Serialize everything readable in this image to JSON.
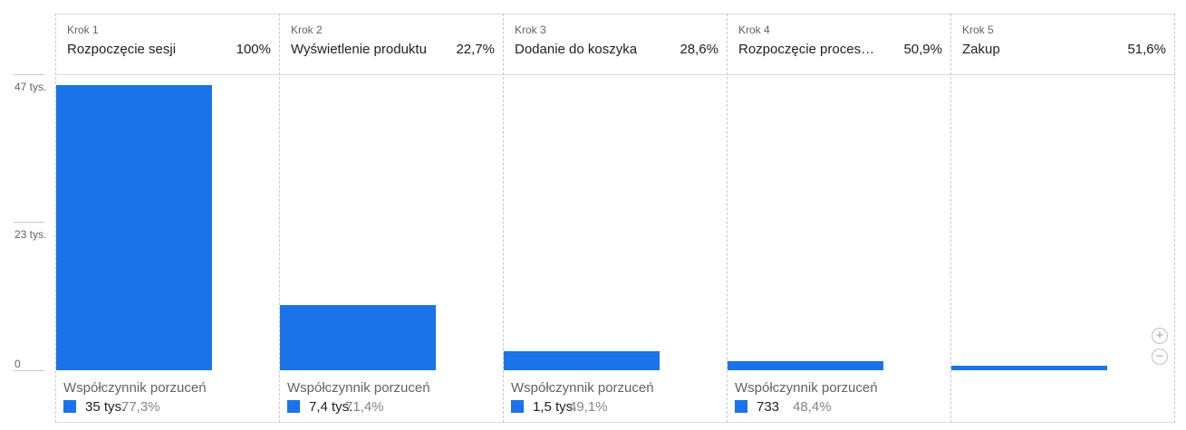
{
  "y_axis": {
    "ticks": [
      "47 tys.",
      "23 tys.",
      "0"
    ]
  },
  "steps": [
    {
      "title": "Krok 1",
      "name": "Rozpoczęcie sesji",
      "pct": "100%",
      "abandon_label": "Współczynnik porzuceń",
      "abandon_count": "35 tys.",
      "abandon_rate": "77,3%"
    },
    {
      "title": "Krok 2",
      "name": "Wyświetlenie produktu",
      "pct": "22,7%",
      "abandon_label": "Współczynnik porzuceń",
      "abandon_count": "7,4 tys.",
      "abandon_rate": "71,4%"
    },
    {
      "title": "Krok 3",
      "name": "Dodanie do koszyka",
      "pct": "28,6%",
      "abandon_label": "Współczynnik porzuceń",
      "abandon_count": "1,5 tys.",
      "abandon_rate": "49,1%"
    },
    {
      "title": "Krok 4",
      "name": "Rozpoczęcie procesu płatności",
      "pct": "50,9%",
      "abandon_label": "Współczynnik porzuceń",
      "abandon_count": "733",
      "abandon_rate": "48,4%"
    },
    {
      "title": "Krok 5",
      "name": "Zakup",
      "pct": "51,6%"
    }
  ],
  "zoom": {
    "in_icon": "zoom-in-icon",
    "out_icon": "zoom-out-icon"
  },
  "chart_data": {
    "type": "bar",
    "categories": [
      "Rozpoczęcie sesji",
      "Wyświetlenie produktu",
      "Dodanie do koszyka",
      "Rozpoczęcie procesu płatności",
      "Zakup"
    ],
    "values": [
      45300,
      10300,
      2950,
      1500,
      776
    ],
    "ylim": [
      0,
      47000
    ],
    "color": "#1a73e8",
    "grid": false,
    "legend": "none"
  }
}
